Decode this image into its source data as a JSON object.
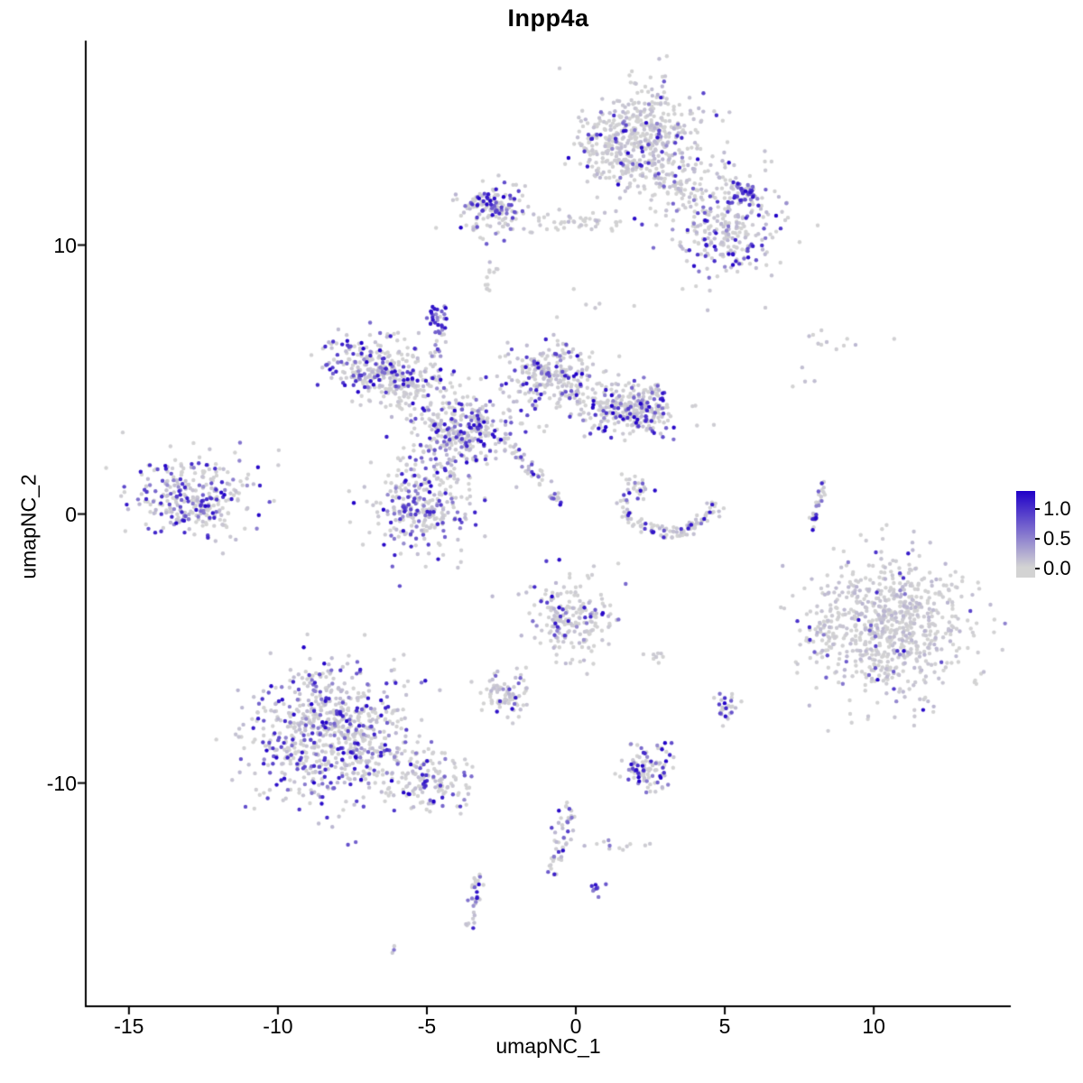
{
  "title": "Inpp4a",
  "axes": {
    "x": {
      "label": "umapNC_1",
      "ticks": [
        -15,
        -10,
        -5,
        0,
        5,
        10
      ],
      "lim": [
        -16.45,
        14.6
      ]
    },
    "y": {
      "label": "umapNC_2",
      "ticks": [
        -10,
        0,
        10
      ],
      "lim": [
        -18.3,
        17.6
      ]
    }
  },
  "legend": {
    "labels": [
      {
        "text": "1.0",
        "value": 1.0
      },
      {
        "text": "0.5",
        "value": 0.5
      },
      {
        "text": "0.0",
        "value": 0.0
      }
    ],
    "bar_range": [
      -0.15,
      1.3
    ],
    "low_color": "#D3D3D3",
    "high_color": "#2000C8"
  },
  "chart_data": {
    "type": "scatter",
    "title": "Inpp4a",
    "xlabel": "umapNC_1",
    "ylabel": "umapNC_2",
    "xlim": [
      -16.45,
      14.6
    ],
    "ylim": [
      -18.3,
      17.6
    ],
    "grid": false,
    "legend_position": "right",
    "color_low": "#D3D3D3",
    "color_high": "#2000C8",
    "point_radius_px": 2.2,
    "seed": 42,
    "clusters": [
      {
        "name": "top-main",
        "cx": 2.3,
        "cy": 14.0,
        "sx": 1.0,
        "sy": 0.95,
        "n": 450,
        "hi": 0.1
      },
      {
        "name": "top-main-west",
        "cx": 1.0,
        "cy": 13.6,
        "sx": 0.5,
        "sy": 0.6,
        "n": 80,
        "hi": 0.08
      },
      {
        "name": "top-right",
        "cx": 5.0,
        "cy": 10.8,
        "sx": 0.9,
        "sy": 1.0,
        "n": 300,
        "hi": 0.22
      },
      {
        "name": "top-right-blue-blob",
        "cx": 5.7,
        "cy": 11.9,
        "sx": 0.25,
        "sy": 0.2,
        "n": 35,
        "hi": 0.85
      },
      {
        "name": "bridge-top",
        "cx": 3.3,
        "cy": 12.4,
        "sx": 0.5,
        "sy": 0.45,
        "n": 50,
        "hi": 0.1
      },
      {
        "name": "top-left-small",
        "cx": -2.8,
        "cy": 11.3,
        "sx": 0.65,
        "sy": 0.5,
        "n": 140,
        "hi": 0.3
      },
      {
        "name": "top-left-blue-blob",
        "cx": -2.85,
        "cy": 11.7,
        "sx": 0.2,
        "sy": 0.22,
        "n": 18,
        "hi": 0.85
      },
      {
        "name": "bridge-mid-top",
        "cx": 0.3,
        "cy": 10.85,
        "sx": 1.0,
        "sy": 0.2,
        "n": 45,
        "hi": 0.04
      },
      {
        "name": "tiny-below-topleft",
        "cx": -2.9,
        "cy": 8.75,
        "sx": 0.12,
        "sy": 0.35,
        "n": 12,
        "hi": 0.08
      },
      {
        "name": "sparse-upper-mid",
        "cx": 0.8,
        "cy": 7.9,
        "sx": 0.8,
        "sy": 0.4,
        "n": 6,
        "hi": 0.0
      },
      {
        "name": "x-arm-nw",
        "cx": -6.9,
        "cy": 5.5,
        "sx": 0.75,
        "sy": 0.6,
        "n": 220,
        "hi": 0.3
      },
      {
        "name": "x-blue-blob",
        "cx": -4.65,
        "cy": 7.3,
        "sx": 0.18,
        "sy": 0.25,
        "n": 28,
        "hi": 0.9
      },
      {
        "name": "x-blue-trail",
        "cx": -4.55,
        "cy": 6.5,
        "sx": 0.1,
        "sy": 0.4,
        "n": 14,
        "hi": 0.5
      },
      {
        "name": "x-mid-nw",
        "cx": -5.6,
        "cy": 4.8,
        "sx": 0.6,
        "sy": 0.5,
        "n": 140,
        "hi": 0.15
      },
      {
        "name": "x-core",
        "cx": -3.8,
        "cy": 3.1,
        "sx": 0.85,
        "sy": 0.7,
        "n": 320,
        "hi": 0.28
      },
      {
        "name": "x-arm-ne",
        "cx": -0.9,
        "cy": 5.1,
        "sx": 0.8,
        "sy": 0.65,
        "n": 260,
        "hi": 0.2
      },
      {
        "name": "x-arm-e",
        "cx": 1.7,
        "cy": 3.9,
        "sx": 0.8,
        "sy": 0.5,
        "n": 240,
        "hi": 0.25
      },
      {
        "name": "x-arm-e-tip",
        "cx": 2.4,
        "cy": 4.0,
        "sx": 0.35,
        "sy": 0.4,
        "n": 60,
        "hi": 0.45
      },
      {
        "name": "x-trail-se",
        "shape": "line",
        "x1": -2.3,
        "y1": 2.7,
        "x2": -0.5,
        "y2": 0.4,
        "jit": 0.12,
        "n": 45,
        "hi": 0.3
      },
      {
        "name": "x-lower-lobe",
        "cx": -5.1,
        "cy": 0.4,
        "sx": 0.85,
        "sy": 0.95,
        "n": 300,
        "hi": 0.3
      },
      {
        "name": "far-left",
        "cx": -12.9,
        "cy": 0.6,
        "sx": 1.0,
        "sy": 0.75,
        "n": 300,
        "hi": 0.3
      },
      {
        "name": "crescent",
        "shape": "arc",
        "cx": 3.1,
        "cy": 0.9,
        "r": 1.6,
        "a0": 195,
        "a1": 345,
        "jit": 0.15,
        "n": 110,
        "hi": 0.22
      },
      {
        "name": "crescent-tip",
        "cx": 2.1,
        "cy": 1.0,
        "sx": 0.25,
        "sy": 0.25,
        "n": 25,
        "hi": 0.3
      },
      {
        "name": "streak-right",
        "shape": "line",
        "x1": 8.35,
        "y1": 1.2,
        "x2": 7.95,
        "y2": -0.5,
        "jit": 0.07,
        "n": 30,
        "hi": 0.35
      },
      {
        "name": "sparse-right-upper",
        "cx": 8.8,
        "cy": 6.5,
        "sx": 1.1,
        "sy": 0.25,
        "n": 11,
        "hi": 0.0
      },
      {
        "name": "sparse-right-mid",
        "cx": 7.7,
        "cy": 4.9,
        "sx": 0.3,
        "sy": 0.3,
        "n": 4,
        "hi": 0.0
      },
      {
        "name": "right-big",
        "cx": 10.7,
        "cy": -4.3,
        "sx": 1.25,
        "sy": 1.3,
        "n": 700,
        "hi": 0.035
      },
      {
        "name": "right-big-west",
        "cx": 8.2,
        "cy": -4.5,
        "sx": 0.35,
        "sy": 0.7,
        "n": 50,
        "hi": 0.12
      },
      {
        "name": "center-low",
        "cx": -0.2,
        "cy": -3.9,
        "sx": 0.7,
        "sy": 0.8,
        "n": 200,
        "hi": 0.15
      },
      {
        "name": "small-left-low",
        "cx": -2.35,
        "cy": -6.7,
        "sx": 0.4,
        "sy": 0.4,
        "n": 80,
        "hi": 0.12
      },
      {
        "name": "tiny-mid",
        "cx": 2.7,
        "cy": -5.3,
        "sx": 0.2,
        "sy": 0.15,
        "n": 8,
        "hi": 0.0
      },
      {
        "name": "small-right-low",
        "cx": 5.1,
        "cy": -7.2,
        "sx": 0.22,
        "sy": 0.3,
        "n": 28,
        "hi": 0.45
      },
      {
        "name": "bottom-left-big",
        "cx": -8.3,
        "cy": -8.2,
        "sx": 1.35,
        "sy": 1.25,
        "n": 750,
        "hi": 0.3
      },
      {
        "name": "bottom-left-tail",
        "cx": -4.9,
        "cy": -9.9,
        "sx": 0.7,
        "sy": 0.5,
        "n": 140,
        "hi": 0.25
      },
      {
        "name": "bottom-small",
        "cx": 2.4,
        "cy": -9.4,
        "sx": 0.45,
        "sy": 0.45,
        "n": 100,
        "hi": 0.35
      },
      {
        "name": "trail-bottom-mid",
        "shape": "line",
        "x1": -0.2,
        "y1": -10.9,
        "x2": -0.8,
        "y2": -13.4,
        "jit": 0.15,
        "n": 50,
        "hi": 0.3
      },
      {
        "name": "trail-bottom-right",
        "shape": "line",
        "x1": 0.5,
        "y1": -12.3,
        "x2": 2.4,
        "y2": -12.4,
        "jit": 0.12,
        "n": 12,
        "hi": 0.25
      },
      {
        "name": "tiny-bottom-blob",
        "cx": 0.65,
        "cy": -13.9,
        "sx": 0.12,
        "sy": 0.15,
        "n": 9,
        "hi": 0.65
      },
      {
        "name": "bottom-streak",
        "shape": "line",
        "x1": -3.3,
        "y1": -13.3,
        "x2": -3.5,
        "y2": -15.5,
        "jit": 0.09,
        "n": 32,
        "hi": 0.4
      },
      {
        "name": "bottom-dot",
        "cx": -6.15,
        "cy": -16.2,
        "sx": 0.08,
        "sy": 0.06,
        "n": 3,
        "hi": 0.3
      }
    ]
  }
}
